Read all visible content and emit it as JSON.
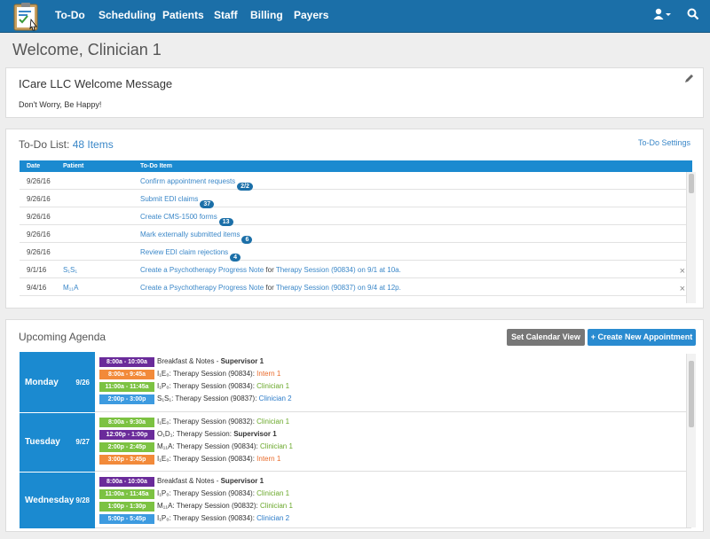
{
  "nav": {
    "items": [
      "To-Do",
      "Scheduling",
      "Patients",
      "Staff",
      "Billing",
      "Payers"
    ],
    "user_icon": "user-icon",
    "search_icon": "search-icon",
    "logo_alt": "clipboard-logo"
  },
  "page_title": "Welcome, Clinician 1",
  "welcome": {
    "title": "ICare LLC Welcome Message",
    "message": "Don't Worry, Be Happy!"
  },
  "todo": {
    "title": "To-Do List:",
    "count": "48 Items",
    "settings": "To-Do Settings",
    "headers": [
      "Date",
      "Patient",
      "To-Do Item"
    ],
    "rows": [
      {
        "date": "9/26/16",
        "patient": "",
        "item": "Confirm appointment requests",
        "badge": "2/2"
      },
      {
        "date": "9/26/16",
        "patient": "",
        "item": "Submit EDI claims",
        "badge": "37"
      },
      {
        "date": "9/26/16",
        "patient": "",
        "item": "Create CMS-1500 forms",
        "badge": "13"
      },
      {
        "date": "9/26/16",
        "patient": "",
        "item": "Mark externally submitted items",
        "badge": "6"
      },
      {
        "date": "9/26/16",
        "patient": "",
        "item": "Review EDI claim rejections",
        "badge": "4"
      },
      {
        "date": "9/1/16",
        "patient": "S₁S₁",
        "item": "Create a Psychotherapy Progress Note",
        "for": " for ",
        "link": "Therapy Session (90834) on 9/1 at 10a.",
        "close": "×"
      },
      {
        "date": "9/4/16",
        "patient": "M₁₁A",
        "item": "Create a Psychotherapy Progress Note",
        "for": " for ",
        "link": "Therapy Session (90837) on 9/4 at 12p.",
        "close": "×"
      }
    ]
  },
  "agenda": {
    "title": "Upcoming Agenda",
    "btn_calendar": "Set Calendar View",
    "btn_create": "+ Create New Appointment",
    "days": [
      {
        "name": "Monday",
        "date": "9/26",
        "appts": [
          {
            "time": "8:00a - 10:00a",
            "color": "purple",
            "text": "Breakfast & Notes - ",
            "who": "Supervisor 1",
            "whoc": "bold"
          },
          {
            "time": "8:00a - 9:45a",
            "color": "orange",
            "text": "I₁E₀: Therapy Session (90834): ",
            "who": "Intern 1",
            "whoc": "orange"
          },
          {
            "time": "11:00a - 11:45a",
            "color": "green",
            "text": "I₁P₀: Therapy Session (90834): ",
            "who": "Clinician 1",
            "whoc": "green"
          },
          {
            "time": "2:00p - 3:00p",
            "color": "blue",
            "text": "S₁S₁: Therapy Session (90837): ",
            "who": "Clinician 2",
            "whoc": "blue"
          }
        ]
      },
      {
        "name": "Tuesday",
        "date": "9/27",
        "appts": [
          {
            "time": "8:00a - 9:30a",
            "color": "green",
            "text": "I₁E₀: Therapy Session (90832): ",
            "who": "Clinician 1",
            "whoc": "green"
          },
          {
            "time": "12:00p - 1:00p",
            "color": "purple",
            "text": "O₁D₁: Therapy Session: ",
            "who": "Supervisor 1",
            "whoc": "bold"
          },
          {
            "time": "2:00p - 2:45p",
            "color": "green",
            "text": "M₁₁A: Therapy Session (90834): ",
            "who": "Clinician 1",
            "whoc": "green"
          },
          {
            "time": "3:00p - 3:45p",
            "color": "orange",
            "text": "I₁E₀: Therapy Session (90834): ",
            "who": "Intern 1",
            "whoc": "orange"
          }
        ]
      },
      {
        "name": "Wednesday",
        "date": "9/28",
        "appts": [
          {
            "time": "8:00a - 10:00a",
            "color": "purple",
            "text": "Breakfast & Notes - ",
            "who": "Supervisor 1",
            "whoc": "bold"
          },
          {
            "time": "11:00a - 11:45a",
            "color": "green",
            "text": "I₁P₀: Therapy Session (90834): ",
            "who": "Clinician 1",
            "whoc": "green"
          },
          {
            "time": "1:00p - 1:30p",
            "color": "green",
            "text": "M₁₁A: Therapy Session (90832): ",
            "who": "Clinician 1",
            "whoc": "green"
          },
          {
            "time": "5:00p - 5:45p",
            "color": "blue",
            "text": "I₁P₀: Therapy Session (90834): ",
            "who": "Clinician 2",
            "whoc": "blue"
          }
        ]
      }
    ]
  }
}
